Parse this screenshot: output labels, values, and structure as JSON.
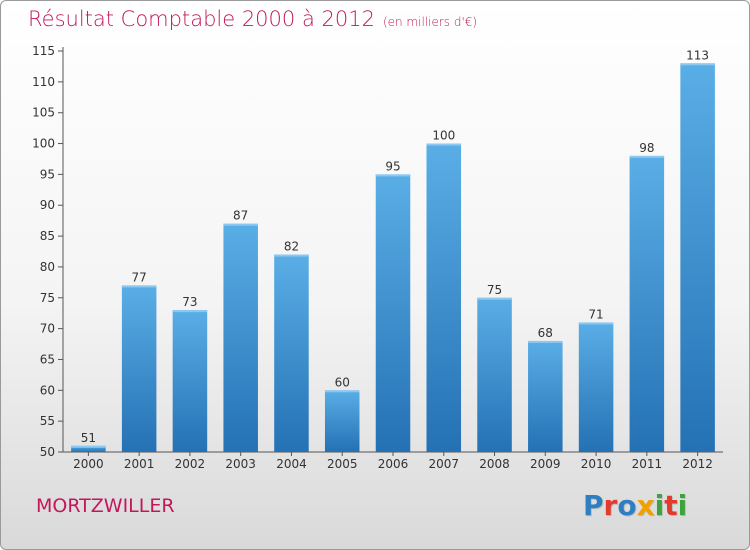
{
  "chart_data": {
    "type": "bar",
    "title": "Résultat Comptable 2000 à 2012",
    "subtitle": "(en milliers d'€)",
    "categories": [
      "2000",
      "2001",
      "2002",
      "2003",
      "2004",
      "2005",
      "2006",
      "2007",
      "2008",
      "2009",
      "2010",
      "2011",
      "2012"
    ],
    "values": [
      51,
      77,
      73,
      87,
      82,
      60,
      95,
      100,
      75,
      68,
      71,
      98,
      113
    ],
    "ylim": [
      50,
      115
    ],
    "yticks": [
      50,
      55,
      60,
      65,
      70,
      75,
      80,
      85,
      90,
      95,
      100,
      105,
      110,
      115
    ],
    "grid": false,
    "bar_color": "#3f95d6"
  },
  "footer": {
    "town": "MORTZWILLER",
    "logo_letters": [
      {
        "ch": "P",
        "color": "#2e7fc2"
      },
      {
        "ch": "r",
        "color": "#e23b2e"
      },
      {
        "ch": "o",
        "color": "#2e7fc2"
      },
      {
        "ch": "x",
        "color": "#f0a000"
      },
      {
        "ch": "i",
        "color": "#3aa53a"
      },
      {
        "ch": "t",
        "color": "#e23b2e"
      },
      {
        "ch": "i",
        "color": "#3aa53a"
      }
    ]
  }
}
